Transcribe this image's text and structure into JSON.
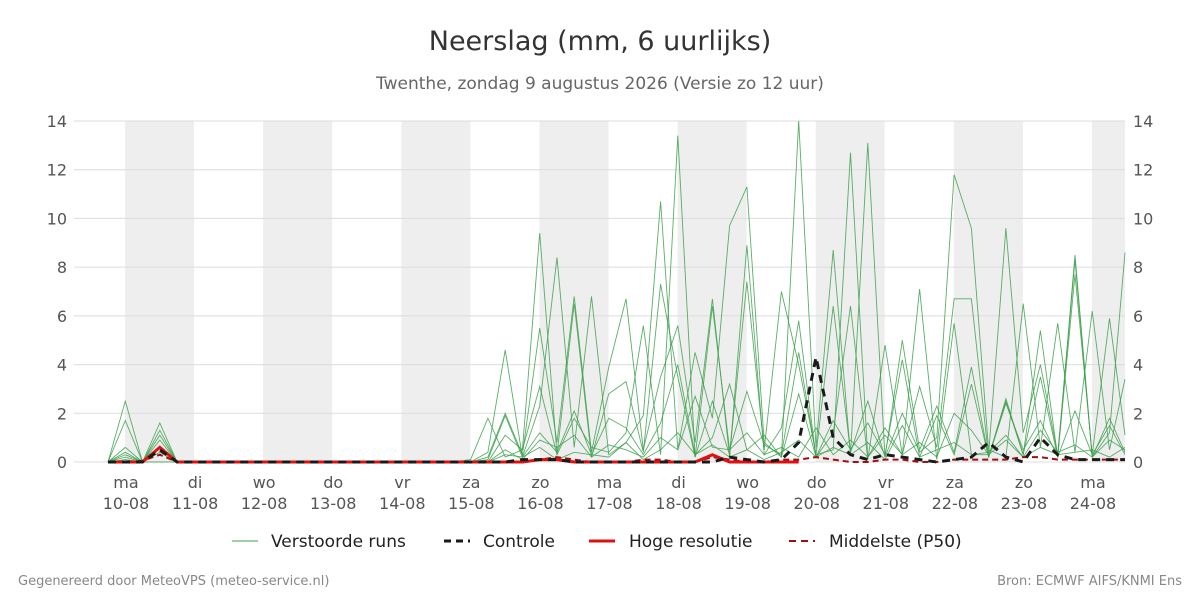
{
  "chart_data": {
    "type": "line",
    "title": "Neerslag (mm, 6 uurlijks)",
    "subtitle": "Twenthe, zondag  9 augustus 2026 (Versie zo 12 uur)",
    "ylim": [
      0,
      14
    ],
    "yticks": [
      "0",
      "2",
      "4",
      "6",
      "8",
      "10",
      "12",
      "14"
    ],
    "x_days": [
      {
        "day": "ma",
        "date": "10-08",
        "shaded": true
      },
      {
        "day": "di",
        "date": "11-08",
        "shaded": false
      },
      {
        "day": "wo",
        "date": "12-08",
        "shaded": true
      },
      {
        "day": "do",
        "date": "13-08",
        "shaded": false
      },
      {
        "day": "vr",
        "date": "14-08",
        "shaded": true
      },
      {
        "day": "za",
        "date": "15-08",
        "shaded": false
      },
      {
        "day": "zo",
        "date": "16-08",
        "shaded": true
      },
      {
        "day": "ma",
        "date": "17-08",
        "shaded": false
      },
      {
        "day": "di",
        "date": "18-08",
        "shaded": true
      },
      {
        "day": "wo",
        "date": "19-08",
        "shaded": false
      },
      {
        "day": "do",
        "date": "20-08",
        "shaded": true
      },
      {
        "day": "vr",
        "date": "21-08",
        "shaded": false
      },
      {
        "day": "za",
        "date": "22-08",
        "shaded": true
      },
      {
        "day": "zo",
        "date": "23-08",
        "shaded": false
      },
      {
        "day": "ma",
        "date": "24-08",
        "shaded": true
      }
    ],
    "x_steps_6h_from_start": 59,
    "controle": [
      0,
      0,
      0,
      0.5,
      0,
      0,
      0,
      0,
      0,
      0,
      0,
      0,
      0,
      0,
      0,
      0,
      0,
      0,
      0,
      0,
      0,
      0,
      0,
      0,
      0.1,
      0.1,
      0.1,
      0,
      0,
      0,
      0,
      0,
      0,
      0,
      0,
      0,
      0.2,
      0.1,
      0,
      0.1,
      0.8,
      4.3,
      1.0,
      0.3,
      0.1,
      0.3,
      0.2,
      0.1,
      0,
      0.1,
      0.2,
      0.8,
      0.2,
      0,
      1.0,
      0.3,
      0.1,
      0.1,
      0.1,
      0.1
    ],
    "hoge_resolutie": [
      0,
      0,
      0,
      0.6,
      0,
      0,
      0,
      0,
      0,
      0,
      0,
      0,
      0,
      0,
      0,
      0,
      0,
      0,
      0,
      0,
      0,
      0,
      0,
      0,
      0,
      0.1,
      0.1,
      0,
      0,
      0,
      0,
      0,
      0,
      0,
      0,
      0.3,
      0,
      0,
      0,
      0,
      0
    ],
    "p50": [
      0,
      0,
      0.05,
      0.3,
      0,
      0,
      0,
      0,
      0,
      0,
      0,
      0,
      0,
      0,
      0,
      0,
      0,
      0,
      0,
      0,
      0,
      0,
      0,
      0,
      0,
      0.1,
      0.2,
      0.1,
      0,
      0,
      0,
      0.1,
      0.1,
      0,
      0,
      0.2,
      0.1,
      0,
      0,
      0.1,
      0.1,
      0.2,
      0.1,
      0,
      0,
      0.1,
      0.1,
      0,
      0,
      0.1,
      0.1,
      0.1,
      0.1,
      0.2,
      0.2,
      0.1,
      0.1,
      0.1,
      0.1,
      0.1
    ],
    "verstoorde_runs": [
      [
        0,
        2.5,
        0,
        0,
        0,
        0,
        0,
        0,
        0,
        0,
        0,
        0,
        0,
        0,
        0,
        0,
        0,
        0,
        0,
        0,
        0,
        0.1,
        1.8,
        0.2,
        0.5,
        9.4,
        0.3,
        1.8,
        0.6,
        0.4,
        1.2,
        5.6,
        0.3,
        13.4,
        0.2,
        2.5,
        0.3,
        7.4,
        0.5,
        7.0,
        4.0,
        0.3,
        0.5,
        12.7,
        0.2,
        1.4,
        0.3,
        7.1,
        0.1,
        5.7,
        0.3,
        0.3,
        9.6,
        1.2,
        4.0,
        0.3,
        8.3,
        0.2,
        1.2,
        8.6
      ],
      [
        0,
        1.7,
        0,
        1.6,
        0,
        0,
        0,
        0,
        0,
        0,
        0,
        0,
        0,
        0,
        0,
        0,
        0,
        0,
        0,
        0,
        0,
        0,
        0.4,
        4.6,
        0.2,
        2.3,
        8.4,
        0.6,
        6.8,
        0.3,
        0.8,
        1.9,
        10.7,
        0.5,
        4.5,
        1.8,
        9.7,
        11.3,
        0.8,
        0.2,
        14.0,
        0.6,
        8.7,
        0.3,
        13.1,
        0.2,
        2.0,
        0.4,
        1.0,
        11.8,
        9.6,
        0.5,
        0.2,
        6.5,
        0.6,
        5.7,
        0.4,
        6.2,
        0.5,
        3.4
      ],
      [
        0,
        0.6,
        0,
        1.3,
        0,
        0,
        0,
        0,
        0,
        0,
        0,
        0,
        0,
        0,
        0,
        0,
        0,
        0,
        0,
        0,
        0,
        0,
        0.2,
        2.0,
        0.3,
        5.5,
        0.8,
        6.8,
        0.4,
        3.9,
        6.7,
        0.5,
        3.5,
        5.6,
        0.8,
        6.7,
        0.2,
        8.9,
        0.3,
        1.4,
        5.8,
        0.2,
        1.2,
        6.4,
        0.1,
        4.8,
        0.3,
        3.1,
        0.6,
        6.7,
        6.7,
        0.2,
        2.5,
        0.3,
        5.4,
        0.2,
        7.7,
        0.3,
        5.9,
        1.1
      ],
      [
        0,
        0.4,
        0,
        1.1,
        0,
        0,
        0,
        0,
        0,
        0,
        0,
        0,
        0,
        0,
        0,
        0,
        0,
        0,
        0,
        0,
        0,
        0,
        0,
        1.1,
        0.5,
        3.1,
        0.3,
        6.5,
        0.2,
        2.8,
        3.3,
        0.4,
        7.3,
        3.5,
        0.2,
        6.4,
        0.5,
        2.9,
        0.7,
        0.3,
        4.5,
        0.3,
        6.4,
        0.4,
        2.5,
        0.2,
        5.0,
        0.5,
        2.3,
        0.4,
        3.9,
        0.2,
        2.6,
        0.3,
        3.5,
        0.2,
        8.5,
        0.2,
        1.8,
        0.4
      ],
      [
        0,
        0.3,
        0,
        0.9,
        0,
        0,
        0,
        0,
        0,
        0,
        0,
        0,
        0,
        0,
        0,
        0,
        0,
        0,
        0,
        0,
        0,
        0,
        0.1,
        1.9,
        0.2,
        1.2,
        0.4,
        2.1,
        0.3,
        1.8,
        1.4,
        0.3,
        1.6,
        4.0,
        0.3,
        1.0,
        3.2,
        0.5,
        1.1,
        0.2,
        2.8,
        0.2,
        1.7,
        0.5,
        1.6,
        0.3,
        4.2,
        0.2,
        1.9,
        0.3,
        3.2,
        0.2,
        2.4,
        0.5,
        1.7,
        0.2,
        2.1,
        0.3,
        1.5,
        0.3
      ],
      [
        0,
        0.2,
        0,
        0.6,
        0,
        0,
        0,
        0,
        0,
        0,
        0,
        0,
        0,
        0,
        0,
        0,
        0,
        0,
        0,
        0,
        0,
        0,
        0,
        0.5,
        0.1,
        0.9,
        0.6,
        1.1,
        0.2,
        0.7,
        0.5,
        0.2,
        1.0,
        0.5,
        2.7,
        0.6,
        0.5,
        1.2,
        0.3,
        0.6,
        0.2,
        1.4,
        0.3,
        0.9,
        0.2,
        1.1,
        0.3,
        0.8,
        0.2,
        2.0,
        1.3,
        0.3,
        0.9,
        0.2,
        1.3,
        0.4,
        0.7,
        0.2,
        0.9,
        0.5
      ],
      [
        0,
        0.1,
        0,
        0.4,
        0,
        0,
        0,
        0,
        0,
        0,
        0,
        0,
        0,
        0,
        0,
        0,
        0,
        0,
        0,
        0,
        0,
        0,
        0,
        0.3,
        0.2,
        0.6,
        0.1,
        0.4,
        0.3,
        0.2,
        0.8,
        0.1,
        0.5,
        1.2,
        0.3,
        0.7,
        0.2,
        0.5,
        0.1,
        0.4,
        0.9,
        0.2,
        0.6,
        0.3,
        0.8,
        0.1,
        1.5,
        0.2,
        0.5,
        0.8,
        0.3,
        0.4,
        1.1,
        0.2,
        0.6,
        0.3,
        0.4,
        0.5,
        0.2,
        0.6
      ]
    ],
    "legend": [
      {
        "label": "Verstoorde runs",
        "style": "thin-green"
      },
      {
        "label": "Controle",
        "style": "dashed-black"
      },
      {
        "label": "Hoge resolutie",
        "style": "solid-red"
      },
      {
        "label": "Middelste (P50)",
        "style": "dashed-darkred"
      }
    ],
    "legend_placement": "bottom",
    "grid": true,
    "colors": {
      "verstoorde": "#3ea04d",
      "controle": "#1a1a1a",
      "hoge_resolutie": "#e01010",
      "p50": "#a01010",
      "shade": "#eeeeee",
      "grid": "#dcdcdc"
    }
  },
  "footer": {
    "left": "Gegenereerd door MeteoVPS (meteo-service.nl)",
    "right": "Bron: ECMWF AIFS/KNMI Ens"
  }
}
